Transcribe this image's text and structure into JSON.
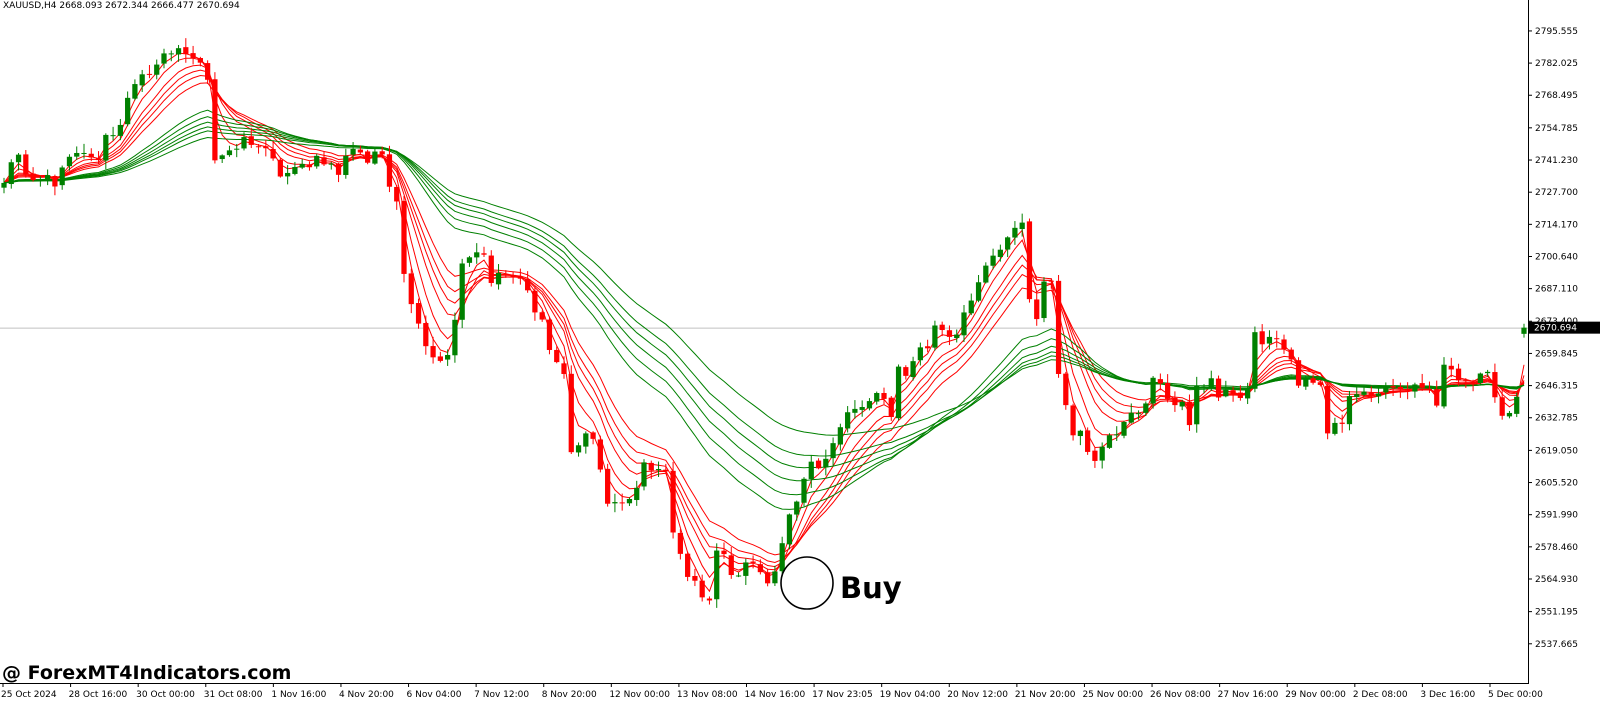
{
  "header": {
    "text": "XAUUSD,H4  2668.093 2672.344 2666.477 2670.694"
  },
  "watermark": {
    "text": "@ ForexMT4Indicators.com"
  },
  "annotation": {
    "text": "Buy"
  },
  "colors": {
    "bull": "#008000",
    "bear": "#ff0000",
    "fast_ma": "#ff0000",
    "slow_ma": "#008000",
    "grid": "#c0c0c0"
  },
  "chart_data": {
    "type": "candlestick",
    "symbol": "XAUUSD",
    "timeframe": "H4",
    "current_price": 2670.694,
    "price_label": "2670.694",
    "ylim": [
      2530,
      2801
    ],
    "y_ticks": [
      "2795.555",
      "2782.025",
      "2768.495",
      "2754.785",
      "2741.230",
      "2727.700",
      "2714.170",
      "2700.640",
      "2687.110",
      "2673.400",
      "2659.845",
      "2646.315",
      "2632.785",
      "2619.050",
      "2605.520",
      "2591.990",
      "2578.460",
      "2564.930",
      "2551.195",
      "2537.665"
    ],
    "x_ticks": [
      "25 Oct 2024",
      "28 Oct 16:00",
      "30 Oct 00:00",
      "31 Oct 08:00",
      "1 Nov 16:00",
      "4 Nov 20:00",
      "6 Nov 04:00",
      "7 Nov 12:00",
      "8 Nov 20:00",
      "12 Nov 00:00",
      "13 Nov 08:00",
      "14 Nov 16:00",
      "17 Nov 23:05",
      "19 Nov 04:00",
      "20 Nov 12:00",
      "21 Nov 20:00",
      "25 Nov 00:00",
      "26 Nov 08:00",
      "27 Nov 16:00",
      "29 Nov 00:00",
      "2 Dec 08:00",
      "3 Dec 16:00",
      "5 Dec 00:00"
    ],
    "closes": [
      2731.6,
      2740.3,
      2743.5,
      2735.2,
      2732.8,
      2733.2,
      2734.9,
      2730.1,
      2738.1,
      2742.6,
      2744.2,
      2744.2,
      2742.3,
      2741.2,
      2751.8,
      2751.7,
      2756.0,
      2767.4,
      2773.2,
      2777.3,
      2777.2,
      2781.4,
      2786.1,
      2786.1,
      2788.3,
      2785.8,
      2784.1,
      2782.2,
      2775.0,
      2741.1,
      2743.2,
      2745.3,
      2746.0,
      2750.9,
      2747.6,
      2746.8,
      2746.2,
      2741.9,
      2734.3,
      2735.8,
      2738.3,
      2739.6,
      2738.2,
      2743.0,
      2739.4,
      2739.7,
      2735.0,
      2743.0,
      2745.9,
      2744.4,
      2740.1,
      2744.8,
      2743.6,
      2730.0,
      2723.8,
      2693.3,
      2680.6,
      2672.4,
      2662.9,
      2658.2,
      2656.7,
      2659.2,
      2674.0,
      2697.7,
      2700.3,
      2702.4,
      2701.4,
      2689.5,
      2693.7,
      2692.7,
      2692.2,
      2691.3,
      2686.4,
      2677.1,
      2674.1,
      2661.3,
      2656.2,
      2651.2,
      2618.3,
      2621.2,
      2626.2,
      2623.9,
      2611.0,
      2596.6,
      2597.3,
      2596.9,
      2598.6,
      2603.3,
      2614.0,
      2610.6,
      2611.2,
      2610.2,
      2584.5,
      2575.5,
      2565.8,
      2564.2,
      2557.2,
      2555.9,
      2576.9,
      2575.4,
      2566.6,
      2566.4,
      2571.9,
      2571.7,
      2567.8,
      2563.1,
      2568.1,
      2580.0,
      2592.1,
      2597.5,
      2607.1,
      2614.3,
      2611.5,
      2615.5,
      2622.1,
      2628.8,
      2635.1,
      2636.5,
      2637.3,
      2639.8,
      2643.2,
      2640.7,
      2633.1,
      2654.3,
      2650.4,
      2656.6,
      2662.4,
      2662.0,
      2671.6,
      2669.7,
      2666.8,
      2667.8,
      2677.1,
      2682.1,
      2689.8,
      2696.8,
      2701.0,
      2703.5,
      2708.7,
      2712.7,
      2714.9,
      2682.7,
      2674.3,
      2690.1,
      2690.3,
      2651.2,
      2638.1,
      2625.4,
      2627.3,
      2618.4,
      2614.6,
      2620.6,
      2625.4,
      2625.8,
      2631.0,
      2634.9,
      2634.7,
      2638.8,
      2649.6,
      2647.2,
      2640.7,
      2638.1,
      2639.5,
      2629.7,
      2646.2,
      2645.9,
      2649.4,
      2641.3,
      2644.6,
      2642.8,
      2641.1,
      2644.6,
      2668.8,
      2663.7,
      2666.8,
      2666.2,
      2661.6,
      2657.3,
      2646.3,
      2649.4,
      2647.5,
      2646.6,
      2626.2,
      2630.6,
      2630.2,
      2641.9,
      2642.7,
      2643.8,
      2642.1,
      2643.0,
      2646.0,
      2645.5,
      2644.6,
      2644.4,
      2646.8,
      2645.4,
      2644.6,
      2637.9,
      2655.1,
      2653.1,
      2648.5,
      2648.3,
      2647.2,
      2651.4,
      2652.1,
      2641.4,
      2633.6,
      2634.8,
      2641.6,
      2670.694
    ],
    "last_candle": {
      "open": 2668.093,
      "high": 2672.344,
      "low": 2666.477,
      "close": 2670.694
    },
    "indicators": [
      {
        "type": "EMA",
        "color": "red",
        "periods": [
          3,
          5,
          8,
          10,
          12,
          15
        ]
      },
      {
        "type": "EMA",
        "color": "green",
        "periods": [
          30,
          35,
          40,
          45,
          50,
          60
        ]
      }
    ]
  }
}
